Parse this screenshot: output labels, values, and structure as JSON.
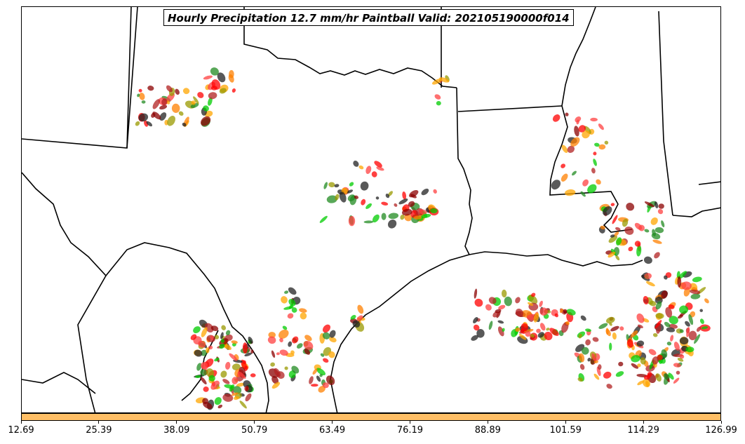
{
  "title": "Hourly Precipitation 12.7 mm/hr Paintball Valid: 202105190000f014",
  "colorbar": {
    "color": "#ffbf66",
    "ticks": [
      "12.69",
      "25.39",
      "38.09",
      "50.79",
      "63.49",
      "76.19",
      "88.89",
      "101.59",
      "114.29",
      "126.99"
    ]
  },
  "member_colors": [
    "#ff0000",
    "#ff8000",
    "#228b22",
    "#00cc00",
    "#8b0000",
    "#9a9a00",
    "#222222",
    "#b22222",
    "#ff4040",
    "#ffa500"
  ]
}
